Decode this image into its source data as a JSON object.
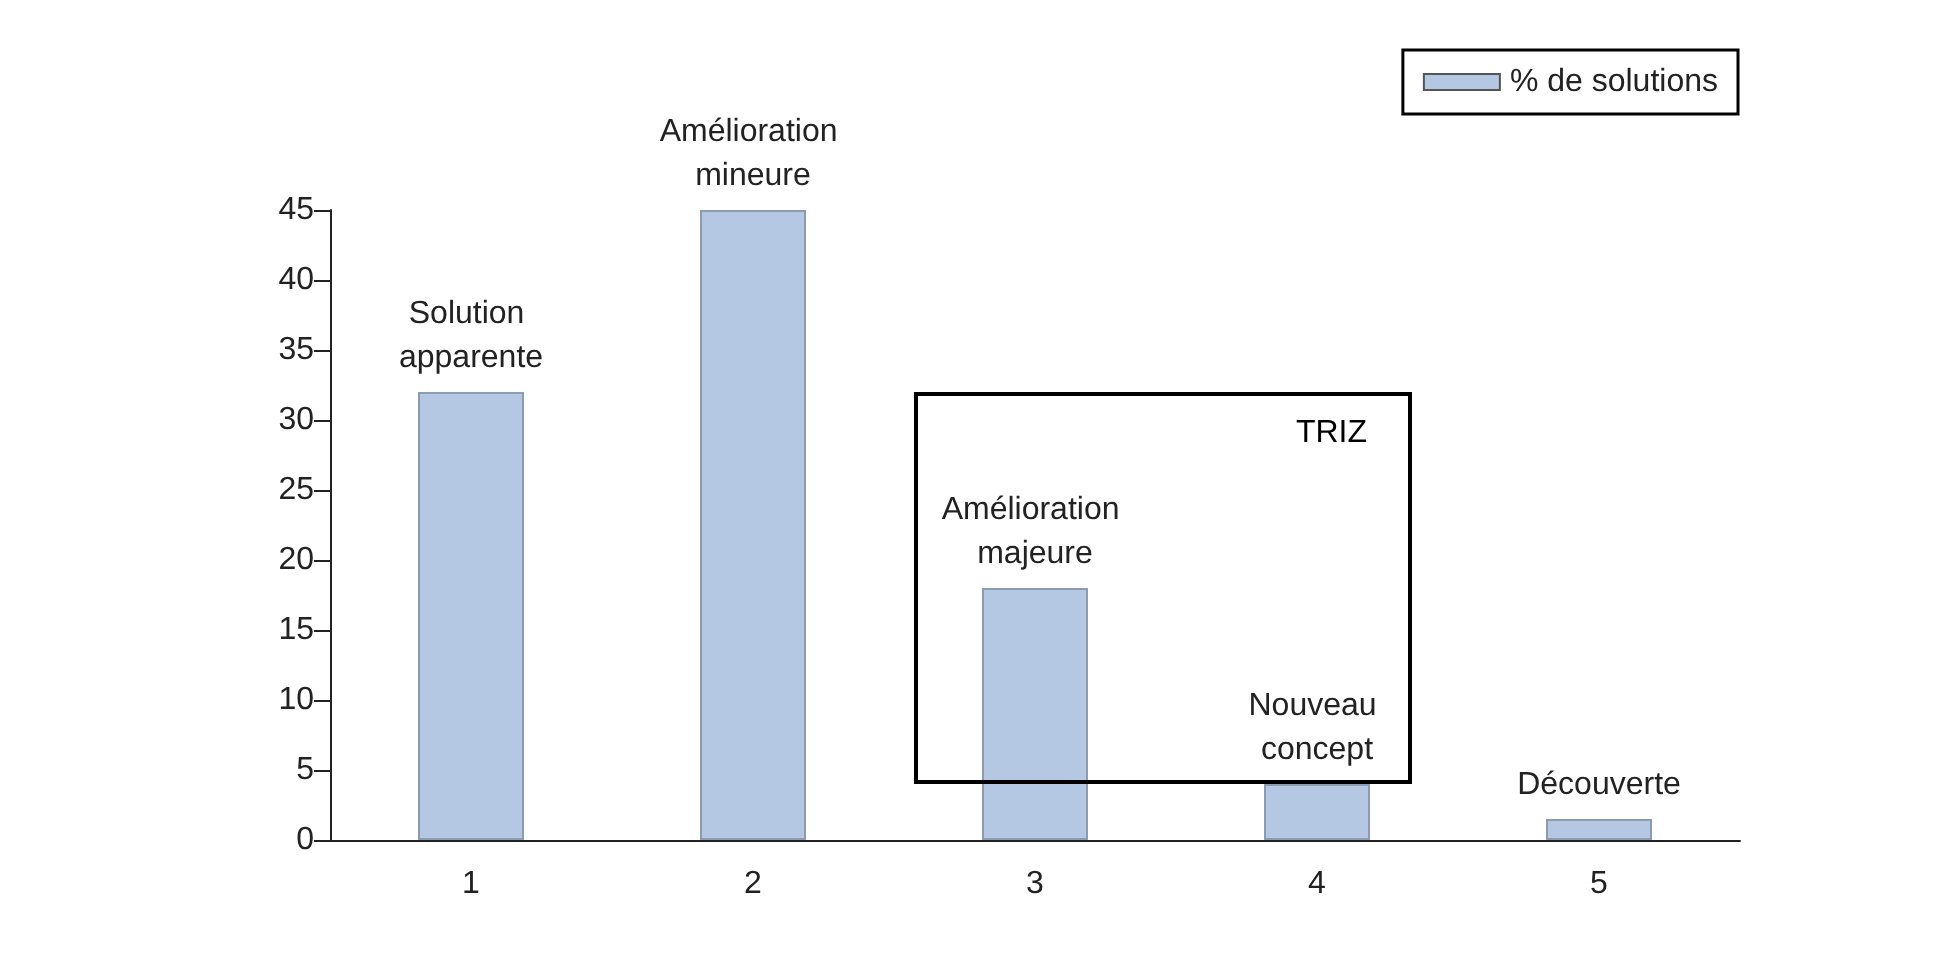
{
  "chart_data": {
    "type": "bar",
    "categories": [
      "1",
      "2",
      "3",
      "4",
      "5"
    ],
    "series": [
      {
        "name": "% de solutions",
        "color": "#b4c8e3",
        "values": [
          32,
          45,
          18,
          4,
          1.5
        ]
      }
    ],
    "ylim": [
      0,
      45
    ],
    "yticks": [
      0,
      5,
      10,
      15,
      20,
      25,
      30,
      35,
      40,
      45
    ],
    "grid": false,
    "legend": "top right",
    "annotations": [
      {
        "text": "Solution apparente",
        "x": "1",
        "y": 32
      },
      {
        "text": "Amélioration mineure",
        "x": "2",
        "y": 45
      },
      {
        "text": "Amélioration majeure",
        "x": "3",
        "y": 18
      },
      {
        "text": "Nouveau concept",
        "x": "4",
        "y": 4
      },
      {
        "text": "Découverte",
        "x": "5",
        "y": 1.5
      },
      "TRIZ"
    ]
  }
}
